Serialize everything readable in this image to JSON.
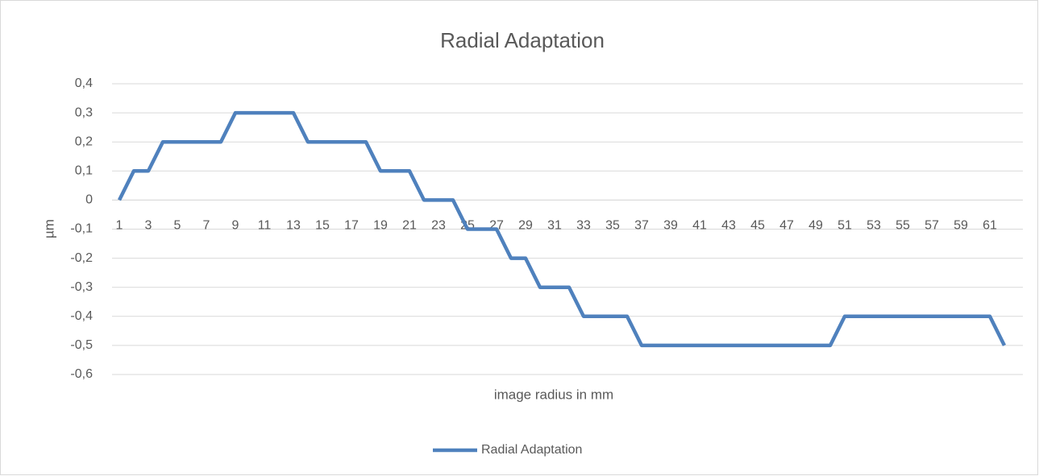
{
  "chart_data": {
    "type": "line",
    "title": "Radial Adaptation",
    "x_label": "image radius in mm",
    "y_label": "µm",
    "categories": [
      1,
      null,
      3,
      null,
      5,
      null,
      7,
      null,
      9,
      null,
      11,
      null,
      13,
      null,
      15,
      null,
      17,
      null,
      19,
      null,
      21,
      null,
      23,
      null,
      25,
      null,
      27,
      null,
      29,
      null,
      31,
      null,
      33,
      null,
      35,
      null,
      37,
      null,
      39,
      null,
      41,
      null,
      43,
      null,
      45,
      null,
      47,
      null,
      49,
      null,
      51,
      null,
      53,
      null,
      55,
      null,
      57,
      null,
      59,
      null,
      61,
      null
    ],
    "series": [
      {
        "name": "Radial Adaptation",
        "color": "#4f81bd",
        "values": [
          0,
          0.1,
          0.1,
          0.2,
          0.2,
          0.2,
          0.2,
          0.2,
          0.3,
          0.3,
          0.3,
          0.3,
          0.3,
          0.2,
          0.2,
          0.2,
          0.2,
          0.2,
          0.1,
          0.1,
          0.1,
          0,
          0,
          0,
          -0.1,
          -0.1,
          -0.1,
          -0.2,
          -0.2,
          -0.3,
          -0.3,
          -0.3,
          -0.4,
          -0.4,
          -0.4,
          -0.4,
          -0.5,
          -0.5,
          -0.5,
          -0.5,
          -0.5,
          -0.5,
          -0.5,
          -0.5,
          -0.5,
          -0.5,
          -0.5,
          -0.5,
          -0.5,
          -0.5,
          -0.4,
          -0.4,
          -0.4,
          -0.4,
          -0.4,
          -0.4,
          -0.4,
          -0.4,
          -0.4,
          -0.4,
          -0.4,
          -0.5
        ]
      }
    ],
    "ylim": [
      -0.6,
      0.4
    ],
    "yticks": [
      {
        "value": -0.6,
        "label": "-0,6"
      },
      {
        "value": -0.5,
        "label": "-0,5"
      },
      {
        "value": -0.4,
        "label": "-0,4"
      },
      {
        "value": -0.3,
        "label": "-0,3"
      },
      {
        "value": -0.2,
        "label": "-0,2"
      },
      {
        "value": -0.1,
        "label": "-0,1"
      },
      0,
      {
        "value": 0.1,
        "label": "0,1"
      },
      {
        "value": 0.2,
        "label": "0,2"
      },
      {
        "value": 0.3,
        "label": "0,3"
      },
      {
        "value": 0.4,
        "label": "0,4"
      }
    ],
    "grid": true,
    "legend": "bottom"
  }
}
